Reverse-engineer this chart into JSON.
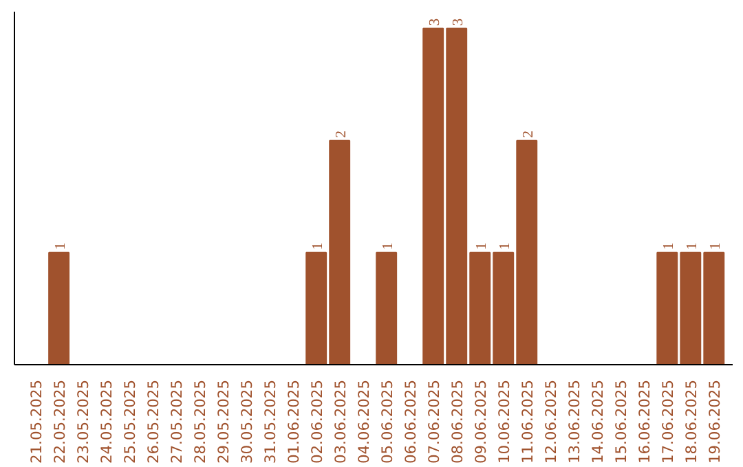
{
  "chart_data": {
    "type": "bar",
    "categories": [
      "21.05.2025",
      "22.05.2025",
      "23.05.2025",
      "24.05.2025",
      "25.05.2025",
      "26.05.2025",
      "27.05.2025",
      "28.05.2025",
      "29.05.2025",
      "30.05.2025",
      "31.05.2025",
      "01.06.2025",
      "02.06.2025",
      "03.06.2025",
      "04.06.2025",
      "05.06.2025",
      "06.06.2025",
      "07.06.2025",
      "08.06.2025",
      "09.06.2025",
      "10.06.2025",
      "11.06.2025",
      "12.06.2025",
      "13.06.2025",
      "14.06.2025",
      "15.06.2025",
      "16.06.2025",
      "17.06.2025",
      "18.06.2025",
      "19.06.2025"
    ],
    "values": [
      0,
      1,
      0,
      0,
      0,
      0,
      0,
      0,
      0,
      0,
      0,
      0,
      1,
      2,
      0,
      1,
      0,
      3,
      3,
      1,
      1,
      2,
      0,
      0,
      0,
      0,
      0,
      1,
      1,
      1
    ],
    "color": "#a0522d",
    "value_labels": [
      null,
      "1",
      null,
      null,
      null,
      null,
      null,
      null,
      null,
      null,
      null,
      null,
      "1",
      "2",
      null,
      "1",
      null,
      "3",
      "3",
      "1",
      "1",
      "2",
      null,
      null,
      null,
      null,
      null,
      "1",
      "1",
      "1"
    ],
    "grid": false
  }
}
